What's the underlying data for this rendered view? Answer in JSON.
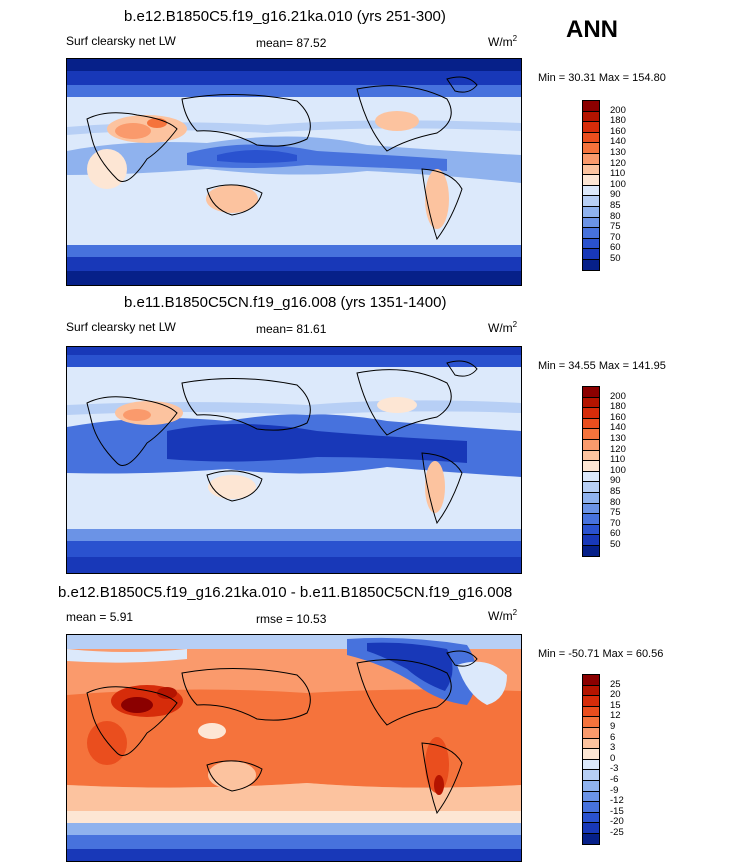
{
  "season": "ANN",
  "panels": [
    {
      "title": "b.e12.B1850C5.f19_g16.21ka.010 (yrs 251-300)",
      "left_label": "Surf clearsky net LW",
      "center_label": "mean=  87.52",
      "units": "W/m",
      "units_sup": "2",
      "minmax": "Min =  30.31 Max = 154.80",
      "colorbar": {
        "labels": [
          "200",
          "180",
          "160",
          "140",
          "130",
          "120",
          "110",
          "100",
          "90",
          "85",
          "80",
          "75",
          "70",
          "60",
          "50"
        ],
        "colors": [
          "#8b0000",
          "#b41400",
          "#d62c0a",
          "#ea4e1e",
          "#f5733c",
          "#fa9a6c",
          "#fcc39f",
          "#fde6d4",
          "#dce9fb",
          "#b7cff5",
          "#8fb2ee",
          "#6b93e6",
          "#4772dd",
          "#2a52cf",
          "#1838b8",
          "#062089"
        ]
      }
    },
    {
      "title": "b.e11.B1850C5CN.f19_g16.008 (yrs 1351-1400)",
      "left_label": "Surf clearsky net LW",
      "center_label": "mean=  81.61",
      "units": "W/m",
      "units_sup": "2",
      "minmax": "Min =  34.55 Max = 141.95",
      "colorbar": {
        "labels": [
          "200",
          "180",
          "160",
          "140",
          "130",
          "120",
          "110",
          "100",
          "90",
          "85",
          "80",
          "75",
          "70",
          "60",
          "50"
        ],
        "colors": [
          "#8b0000",
          "#b41400",
          "#d62c0a",
          "#ea4e1e",
          "#f5733c",
          "#fa9a6c",
          "#fcc39f",
          "#fde6d4",
          "#dce9fb",
          "#b7cff5",
          "#8fb2ee",
          "#6b93e6",
          "#4772dd",
          "#2a52cf",
          "#1838b8",
          "#062089"
        ]
      }
    },
    {
      "title": "b.e12.B1850C5.f19_g16.21ka.010 - b.e11.B1850C5CN.f19_g16.008",
      "left_label": "mean =   5.91",
      "center_label": "rmse =  10.53",
      "units": "W/m",
      "units_sup": "2",
      "minmax": "Min = -50.71 Max =  60.56",
      "colorbar": {
        "labels": [
          "25",
          "20",
          "15",
          "12",
          "9",
          "6",
          "3",
          "0",
          "-3",
          "-6",
          "-9",
          "-12",
          "-15",
          "-20",
          "-25"
        ],
        "colors": [
          "#8b0000",
          "#b41400",
          "#d62c0a",
          "#ea4e1e",
          "#f5733c",
          "#fa9a6c",
          "#fcc39f",
          "#fde6d4",
          "#dce9fb",
          "#b7cff5",
          "#8fb2ee",
          "#6b93e6",
          "#4772dd",
          "#2a52cf",
          "#1838b8",
          "#062089"
        ]
      }
    }
  ]
}
